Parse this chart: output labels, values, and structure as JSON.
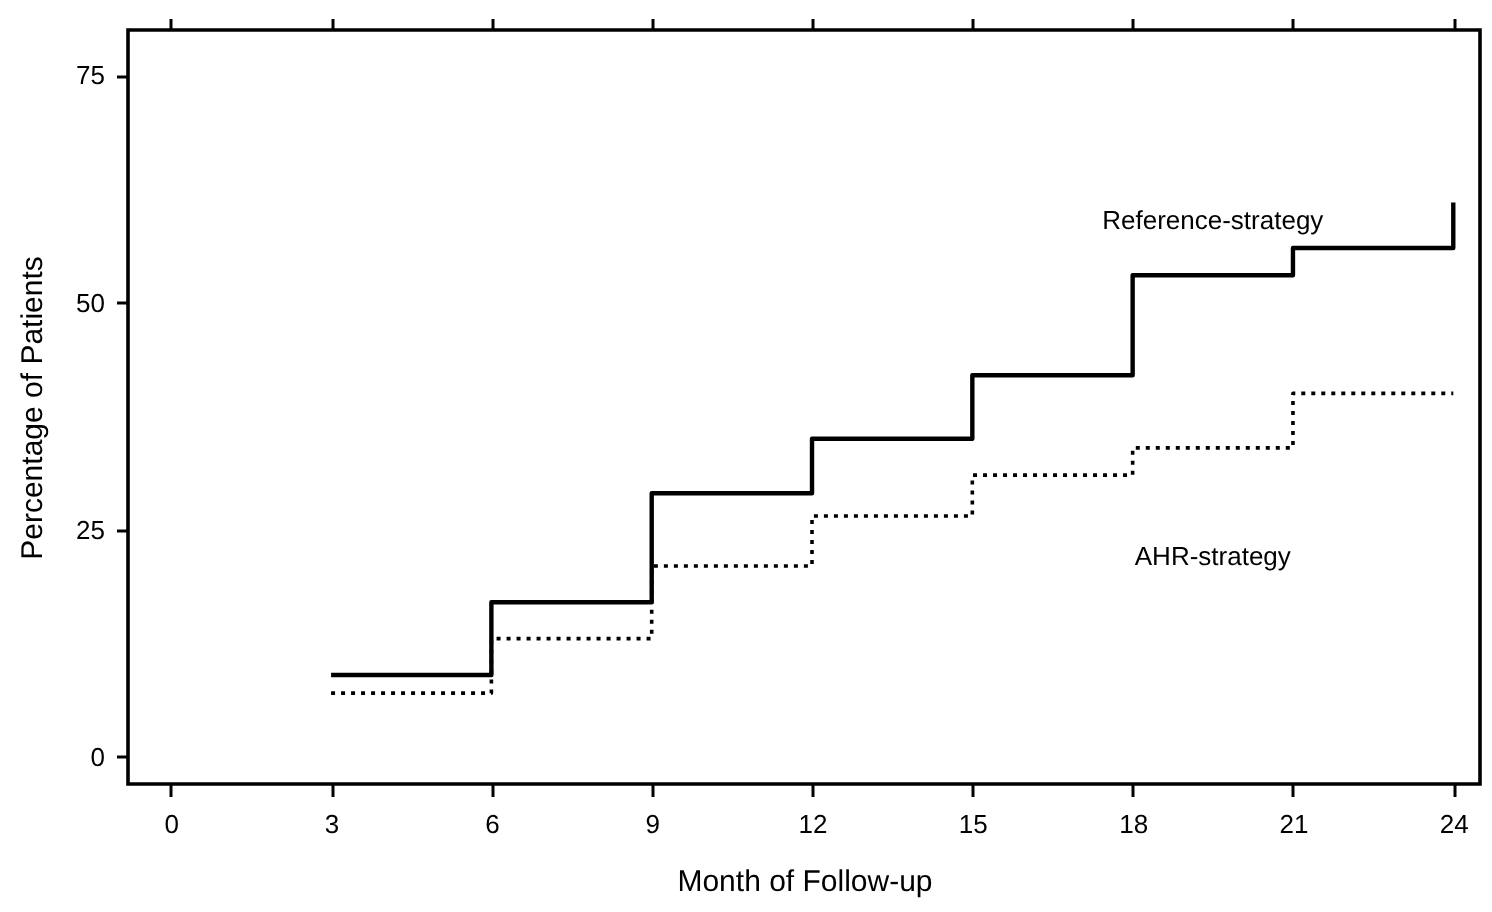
{
  "chart_data": {
    "type": "step",
    "xlabel": "Month of Follow-up",
    "ylabel": "Percentage of Patients",
    "xlim": [
      -0.8,
      24.5
    ],
    "xticks": [
      0,
      3,
      6,
      9,
      12,
      15,
      18,
      21,
      24
    ],
    "ylim": [
      -3,
      80
    ],
    "yticks": [
      0,
      25,
      50,
      75
    ],
    "grid": false,
    "marker": "none",
    "series": [
      {
        "name": "Reference-strategy",
        "color": "#000000",
        "line_style": "solid",
        "x": [
          3,
          6,
          9,
          12,
          15,
          18,
          21,
          24,
          24
        ],
        "values": [
          9,
          17,
          29,
          35,
          42,
          53,
          56,
          56,
          61
        ]
      },
      {
        "name": "AHR-strategy",
        "color": "#000000",
        "line_style": "dotted",
        "x": [
          3,
          6,
          9,
          12,
          15,
          18,
          21,
          24
        ],
        "values": [
          7,
          13,
          21,
          26.5,
          31,
          34,
          40,
          40
        ]
      }
    ]
  }
}
